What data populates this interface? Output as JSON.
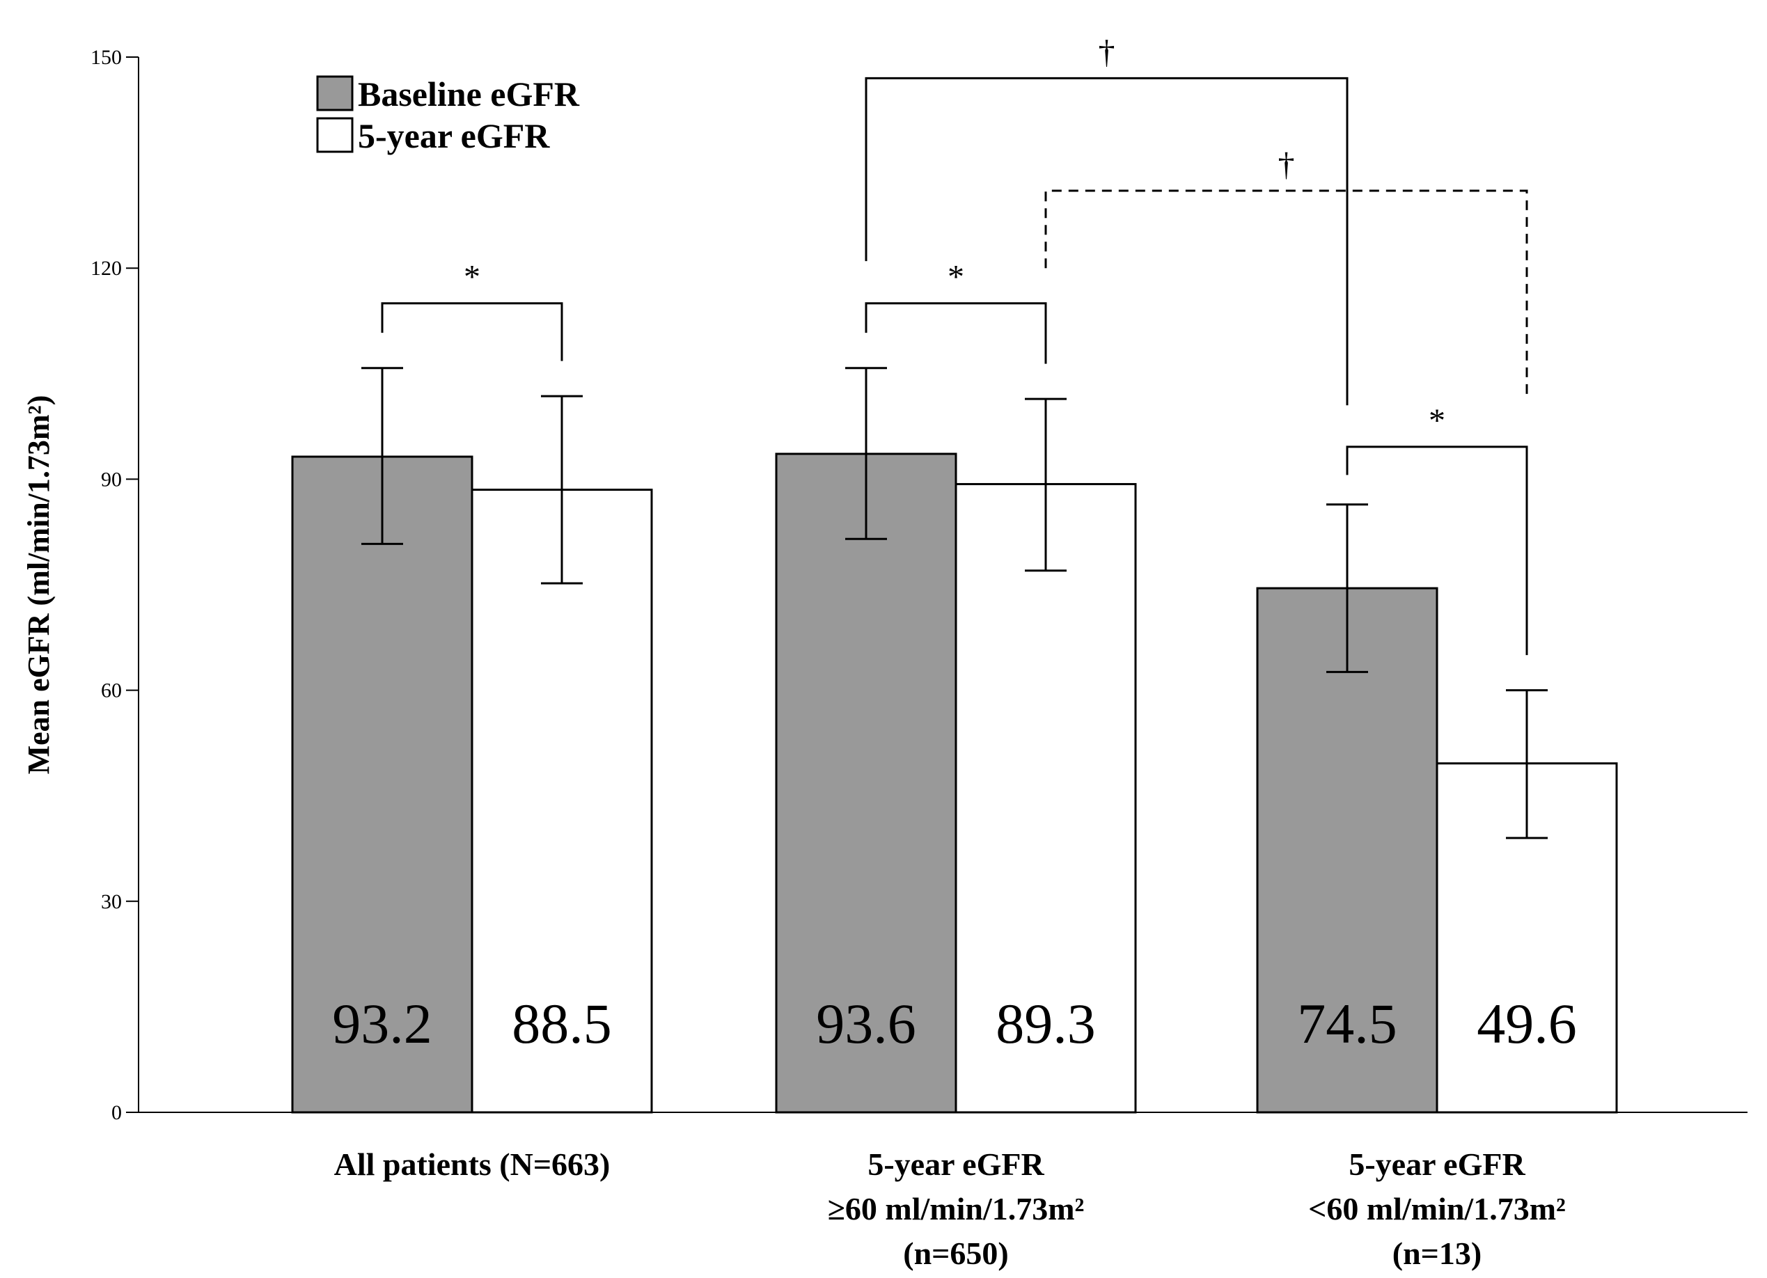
{
  "chart_data": {
    "type": "bar",
    "title": "",
    "xlabel": "",
    "ylabel": "Mean eGFR (ml/min/1.73m²)",
    "ylim": [
      0,
      150
    ],
    "yticks": [
      0,
      30,
      60,
      90,
      120,
      150
    ],
    "grid": false,
    "legend_position": "top-left",
    "colors": {
      "baseline": "#999999",
      "five_year": "#ffffff",
      "stroke": "#000000"
    },
    "groups": [
      {
        "id": "all",
        "label_lines": [
          "All patients (N=663)"
        ]
      },
      {
        "id": "ge60",
        "label_lines": [
          "5-year eGFR",
          "≥60 ml/min/1.73m²",
          "(n=650)"
        ]
      },
      {
        "id": "lt60",
        "label_lines": [
          "5-year eGFR",
          "<60 ml/min/1.73m²",
          "(n=13)"
        ]
      }
    ],
    "series": [
      {
        "name": "Baseline eGFR",
        "values": [
          93.2,
          93.6,
          74.5
        ],
        "value_labels": [
          "93.2",
          "93.6",
          "74.5"
        ],
        "error_low": [
          80.8,
          81.5,
          62.6
        ],
        "error_high": [
          105.8,
          105.8,
          86.4
        ]
      },
      {
        "name": "5-year eGFR",
        "values": [
          88.5,
          89.3,
          49.6
        ],
        "value_labels": [
          "88.5",
          "89.3",
          "49.6"
        ],
        "error_low": [
          75.2,
          77.0,
          39.0
        ],
        "error_high": [
          101.8,
          101.4,
          60.0
        ]
      }
    ],
    "significance": [
      {
        "name": "sig-all-baseline-vs-5year",
        "from": [
          0,
          0
        ],
        "to": [
          0,
          1
        ],
        "level": 115.0,
        "legs": [
          110.8,
          106.8
        ],
        "style": "solid",
        "mark": "*"
      },
      {
        "name": "sig-ge60-baseline-vs-5year",
        "from": [
          1,
          0
        ],
        "to": [
          1,
          1
        ],
        "level": 115.0,
        "legs": [
          110.8,
          106.4
        ],
        "style": "solid",
        "mark": "*"
      },
      {
        "name": "sig-lt60-baseline-vs-5year",
        "from": [
          2,
          0
        ],
        "to": [
          2,
          1
        ],
        "level": 94.6,
        "legs": [
          90.6,
          65.0
        ],
        "style": "solid",
        "mark": "*"
      },
      {
        "name": "sig-baseline-ge60-vs-lt60",
        "from": [
          1,
          0
        ],
        "to": [
          2,
          0
        ],
        "level": 147.0,
        "legs": [
          121.0,
          100.5
        ],
        "style": "solid",
        "mark": "†"
      },
      {
        "name": "sig-5year-ge60-vs-lt60",
        "from": [
          1,
          1
        ],
        "to": [
          2,
          1
        ],
        "level": 131.0,
        "legs": [
          120.0,
          102.0
        ],
        "style": "dashed",
        "mark": "†"
      }
    ]
  }
}
